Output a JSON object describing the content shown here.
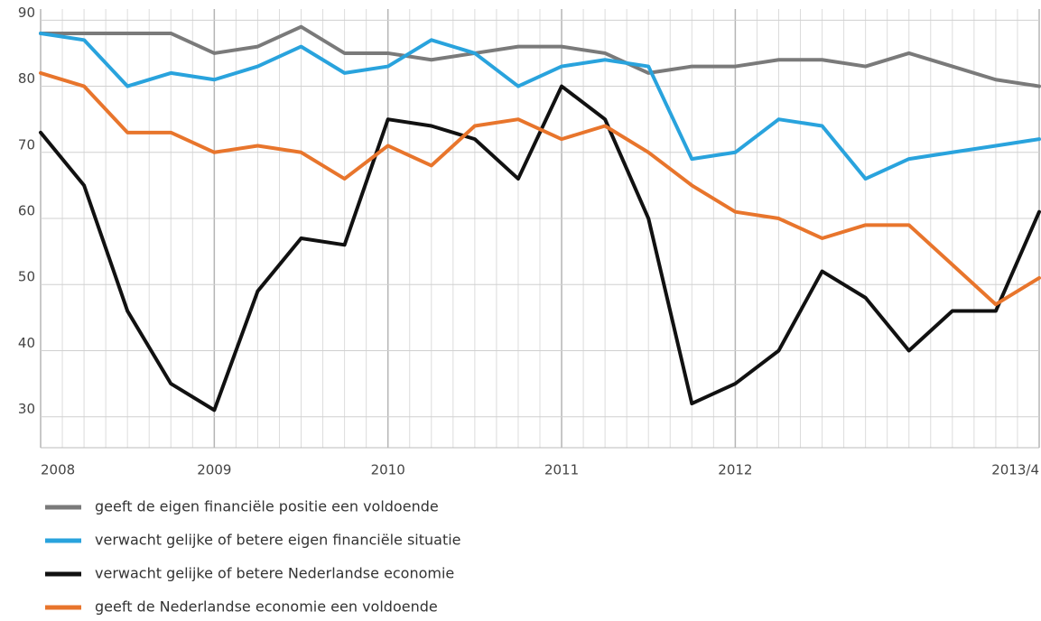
{
  "chart_data": {
    "type": "line",
    "categories": [
      "2008",
      null,
      null,
      null,
      "2009",
      null,
      null,
      null,
      "2010",
      null,
      null,
      null,
      "2011",
      null,
      null,
      null,
      "2012",
      null,
      null,
      null,
      null,
      null,
      null,
      "2013/4"
    ],
    "series": [
      {
        "name": "geeft de eigen financiële positie een voldoende",
        "color": "#7a7a7a",
        "values": [
          88,
          88,
          88,
          88,
          85,
          86,
          89,
          85,
          85,
          84,
          85,
          86,
          86,
          85,
          82,
          83,
          83,
          84,
          84,
          83,
          85,
          83,
          81,
          80
        ]
      },
      {
        "name": "verwacht gelijke of betere eigen financiële situatie",
        "color": "#29a3dd",
        "values": [
          88,
          87,
          80,
          82,
          81,
          83,
          86,
          82,
          83,
          87,
          85,
          80,
          83,
          84,
          83,
          69,
          70,
          75,
          74,
          66,
          69,
          70,
          71,
          72
        ]
      },
      {
        "name": "verwacht gelijke of betere Nederlandse economie",
        "color": "#111111",
        "values": [
          73,
          65,
          46,
          35,
          31,
          49,
          57,
          56,
          75,
          74,
          72,
          66,
          80,
          75,
          60,
          32,
          35,
          40,
          52,
          48,
          40,
          46,
          46,
          61
        ]
      },
      {
        "name": "geeft de Nederlandse economie een voldoende",
        "color": "#e8752c",
        "values": [
          82,
          80,
          73,
          73,
          70,
          71,
          70,
          66,
          71,
          68,
          74,
          75,
          72,
          74,
          70,
          65,
          61,
          60,
          57,
          59,
          59,
          53,
          47,
          51
        ]
      }
    ],
    "ylim": [
      26,
      91
    ],
    "yticks": [
      30,
      40,
      50,
      60,
      70,
      80,
      90
    ],
    "grid": true
  }
}
